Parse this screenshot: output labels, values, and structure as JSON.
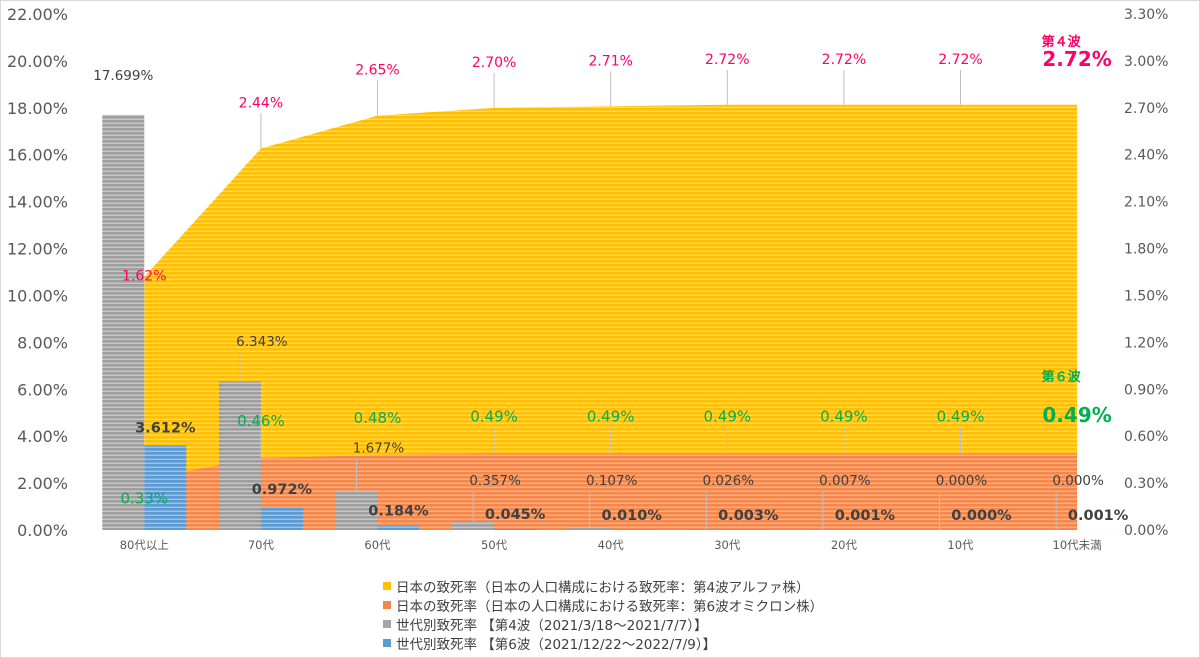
{
  "chart_data": {
    "type": "bar+area",
    "categories": [
      "80代以上",
      "70代",
      "60代",
      "50代",
      "40代",
      "30代",
      "20代",
      "10代",
      "10代未満"
    ],
    "y_left": {
      "min": 0,
      "max": 22,
      "step": 2,
      "tick_labels": [
        "0.00%",
        "2.00%",
        "4.00%",
        "6.00%",
        "8.00%",
        "10.00%",
        "12.00%",
        "14.00%",
        "16.00%",
        "18.00%",
        "20.00%",
        "22.00%"
      ]
    },
    "y_right": {
      "min": 0,
      "max": 3.3,
      "step": 0.3,
      "tick_labels": [
        "0.00%",
        "0.30%",
        "0.60%",
        "0.90%",
        "1.20%",
        "1.50%",
        "1.80%",
        "2.10%",
        "2.40%",
        "2.70%",
        "3.00%",
        "3.30%"
      ]
    },
    "grid": false,
    "legend_position": "bottom",
    "series": [
      {
        "name": "日本の致死率（日本の人口構成における致死率：第4波アルファ株）",
        "kind": "area",
        "axis": "right",
        "color": "#ffc000",
        "values": [
          1.62,
          2.44,
          2.65,
          2.7,
          2.71,
          2.72,
          2.72,
          2.72,
          2.72
        ],
        "labels": [
          "1.62%",
          "2.44%",
          "2.65%",
          "2.70%",
          "2.71%",
          "2.72%",
          "2.72%",
          "2.72%",
          "2.72%"
        ],
        "label_color": "#ff0066"
      },
      {
        "name": "日本の致死率（日本の人口構成における致死率：第6波オミクロン株）",
        "kind": "area",
        "axis": "right",
        "color": "#f4874b",
        "values": [
          0.33,
          0.46,
          0.48,
          0.49,
          0.49,
          0.49,
          0.49,
          0.49,
          0.49
        ],
        "labels": [
          "0.33%",
          "0.46%",
          "0.48%",
          "0.49%",
          "0.49%",
          "0.49%",
          "0.49%",
          "0.49%",
          "0.49%"
        ],
        "label_color": "#00b050"
      },
      {
        "name": "世代別致死率 【第4波（2021/3/18～2021/7/7）】",
        "kind": "bar",
        "axis": "left",
        "color": "#a6a6a6",
        "values": [
          17.699,
          6.343,
          1.677,
          0.357,
          0.107,
          0.026,
          0.007,
          0.0,
          0.0
        ],
        "labels": [
          "17.699%",
          "6.343%",
          "1.677%",
          "0.357%",
          "0.107%",
          "0.026%",
          "0.007%",
          "0.000%",
          "0.000%"
        ]
      },
      {
        "name": "世代別致死率 【第6波（2021/12/22～2022/7/9）】",
        "kind": "bar",
        "axis": "left",
        "color": "#5b9bd5",
        "values": [
          3.612,
          0.972,
          0.184,
          0.045,
          0.01,
          0.003,
          0.001,
          0.0,
          0.001
        ],
        "labels": [
          "3.612%",
          "0.972%",
          "0.184%",
          "0.045%",
          "0.010%",
          "0.003%",
          "0.001%",
          "0.000%",
          "0.001%"
        ]
      }
    ],
    "annotations": [
      {
        "title": "第４波",
        "value": "2.72%",
        "color": "#ff0066"
      },
      {
        "title": "第６波",
        "value": "0.49%",
        "color": "#00b050"
      }
    ]
  }
}
